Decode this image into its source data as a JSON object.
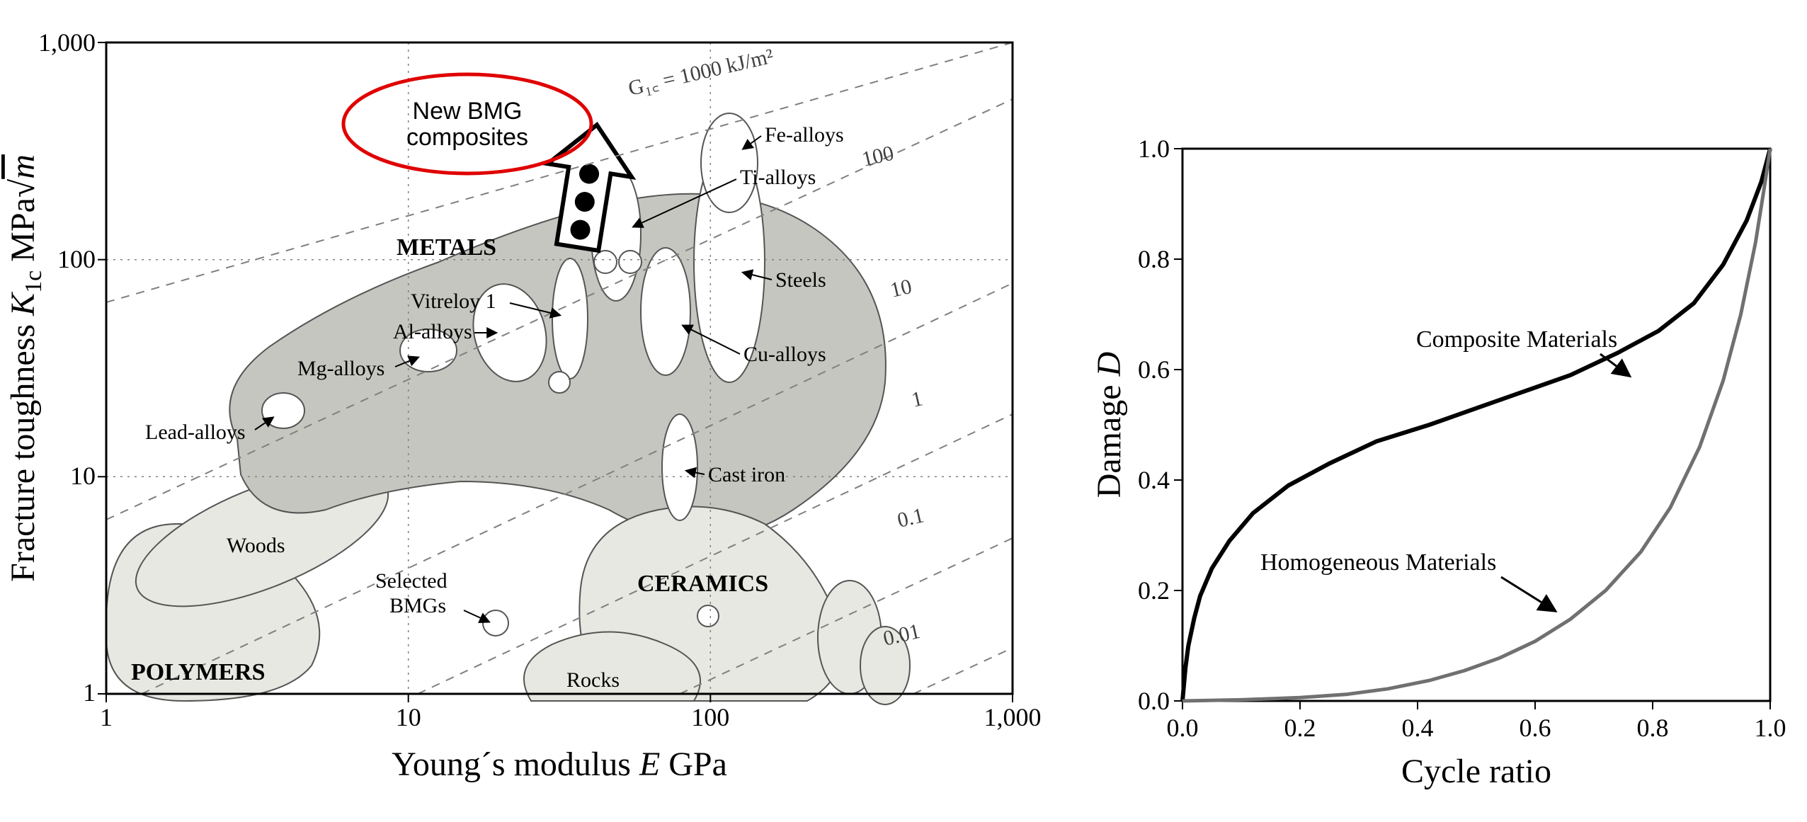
{
  "left_chart": {
    "type": "ashby-scatter",
    "background_color": "#ffffff",
    "axis_color": "#000000",
    "grid_color": "#808080",
    "diag_color": "#808080",
    "x": {
      "label": "Young´s modulus E GPa",
      "label_fontsize": 48,
      "label_fontstyle": "italic-mixed",
      "scale": "log",
      "min": 1,
      "max": 1000,
      "ticks": [
        1,
        10,
        100,
        1000
      ],
      "tick_labels": [
        "1",
        "10",
        "100",
        "1,000"
      ],
      "tick_fontsize": 36
    },
    "y": {
      "label": "Fracture toughness K₁c MPa√m",
      "label_fontsize": 48,
      "scale": "log",
      "min": 1,
      "max": 1000,
      "ticks": [
        1,
        10,
        100,
        1000
      ],
      "tick_labels": [
        "1",
        "10",
        "100",
        "1,000"
      ],
      "tick_fontsize": 36
    },
    "diagonals": {
      "prefix": "G₁꜀ =",
      "unit": "kJ/m²",
      "labels": [
        "1000",
        "100",
        "10",
        "1",
        "0.1",
        "0.01"
      ],
      "label_fontsize": 30
    },
    "region_fill_light": "#e8e8e2",
    "region_fill_medium": "#c6c6c0",
    "callout": {
      "text_line1": "New BMG",
      "text_line2": "composites",
      "ellipse_stroke": "#e00000",
      "ellipse_stroke_width": 5,
      "text_color": "#000000",
      "fontsize": 34
    },
    "groups": {
      "polymers": "POLYMERS",
      "metals": "METALS",
      "ceramics": "CERAMICS",
      "group_fontsize": 34,
      "group_fontstyle": "bold"
    },
    "item_labels": {
      "woods": "Woods",
      "selected_bmgs_l1": "Selected",
      "selected_bmgs_l2": "BMGs",
      "rocks": "Rocks",
      "lead_alloys": "Lead-alloys",
      "mg_alloys": "Mg-alloys",
      "al_alloys": "Al-alloys",
      "vitreloy1": "Vitreloy 1",
      "cast_iron": "Cast iron",
      "cu_alloys": "Cu-alloys",
      "steels": "Steels",
      "ti_alloys": "Ti-alloys",
      "fe_alloys": "Fe-alloys",
      "item_fontsize": 30
    },
    "bmg_points": {
      "color": "#000000",
      "radius": 14,
      "points": [
        {
          "E": 80,
          "K1c": 100
        },
        {
          "E": 80,
          "K1c": 140
        },
        {
          "E": 80,
          "K1c": 185
        }
      ]
    }
  },
  "right_chart": {
    "type": "line",
    "background_color": "#ffffff",
    "axis_color": "#000000",
    "x": {
      "label": "Cycle ratio",
      "label_fontsize": 48,
      "min": 0.0,
      "max": 1.0,
      "ticks": [
        0.0,
        0.2,
        0.4,
        0.6,
        0.8,
        1.0
      ],
      "tick_labels": [
        "0.0",
        "0.2",
        "0.4",
        "0.6",
        "0.8",
        "1.0"
      ],
      "tick_fontsize": 36
    },
    "y": {
      "label": "Damage D",
      "label_fontsize": 48,
      "min": 0.0,
      "max": 1.0,
      "ticks": [
        0.0,
        0.2,
        0.4,
        0.6,
        0.8,
        1.0
      ],
      "tick_labels": [
        "0.0",
        "0.2",
        "0.4",
        "0.6",
        "0.8",
        "1.0"
      ],
      "tick_fontsize": 36
    },
    "series": {
      "composite": {
        "label": "Composite Materials",
        "color": "#000000",
        "line_width": 6,
        "points": [
          [
            0.0,
            0.0
          ],
          [
            0.005,
            0.06
          ],
          [
            0.01,
            0.1
          ],
          [
            0.02,
            0.15
          ],
          [
            0.03,
            0.19
          ],
          [
            0.05,
            0.24
          ],
          [
            0.08,
            0.29
          ],
          [
            0.12,
            0.34
          ],
          [
            0.18,
            0.39
          ],
          [
            0.25,
            0.43
          ],
          [
            0.33,
            0.47
          ],
          [
            0.42,
            0.5
          ],
          [
            0.5,
            0.53
          ],
          [
            0.58,
            0.56
          ],
          [
            0.66,
            0.59
          ],
          [
            0.74,
            0.63
          ],
          [
            0.81,
            0.67
          ],
          [
            0.87,
            0.72
          ],
          [
            0.92,
            0.79
          ],
          [
            0.96,
            0.87
          ],
          [
            0.985,
            0.94
          ],
          [
            1.0,
            1.0
          ]
        ]
      },
      "homogeneous": {
        "label": "Homogeneous Materials",
        "color": "#707070",
        "line_width": 5,
        "points": [
          [
            0.0,
            0.0
          ],
          [
            0.1,
            0.002
          ],
          [
            0.2,
            0.006
          ],
          [
            0.28,
            0.012
          ],
          [
            0.35,
            0.022
          ],
          [
            0.42,
            0.037
          ],
          [
            0.48,
            0.055
          ],
          [
            0.54,
            0.078
          ],
          [
            0.6,
            0.108
          ],
          [
            0.66,
            0.148
          ],
          [
            0.72,
            0.2
          ],
          [
            0.78,
            0.27
          ],
          [
            0.83,
            0.35
          ],
          [
            0.88,
            0.46
          ],
          [
            0.92,
            0.58
          ],
          [
            0.95,
            0.7
          ],
          [
            0.975,
            0.83
          ],
          [
            0.99,
            0.93
          ],
          [
            1.0,
            1.0
          ]
        ]
      },
      "label_fontsize": 34
    }
  }
}
